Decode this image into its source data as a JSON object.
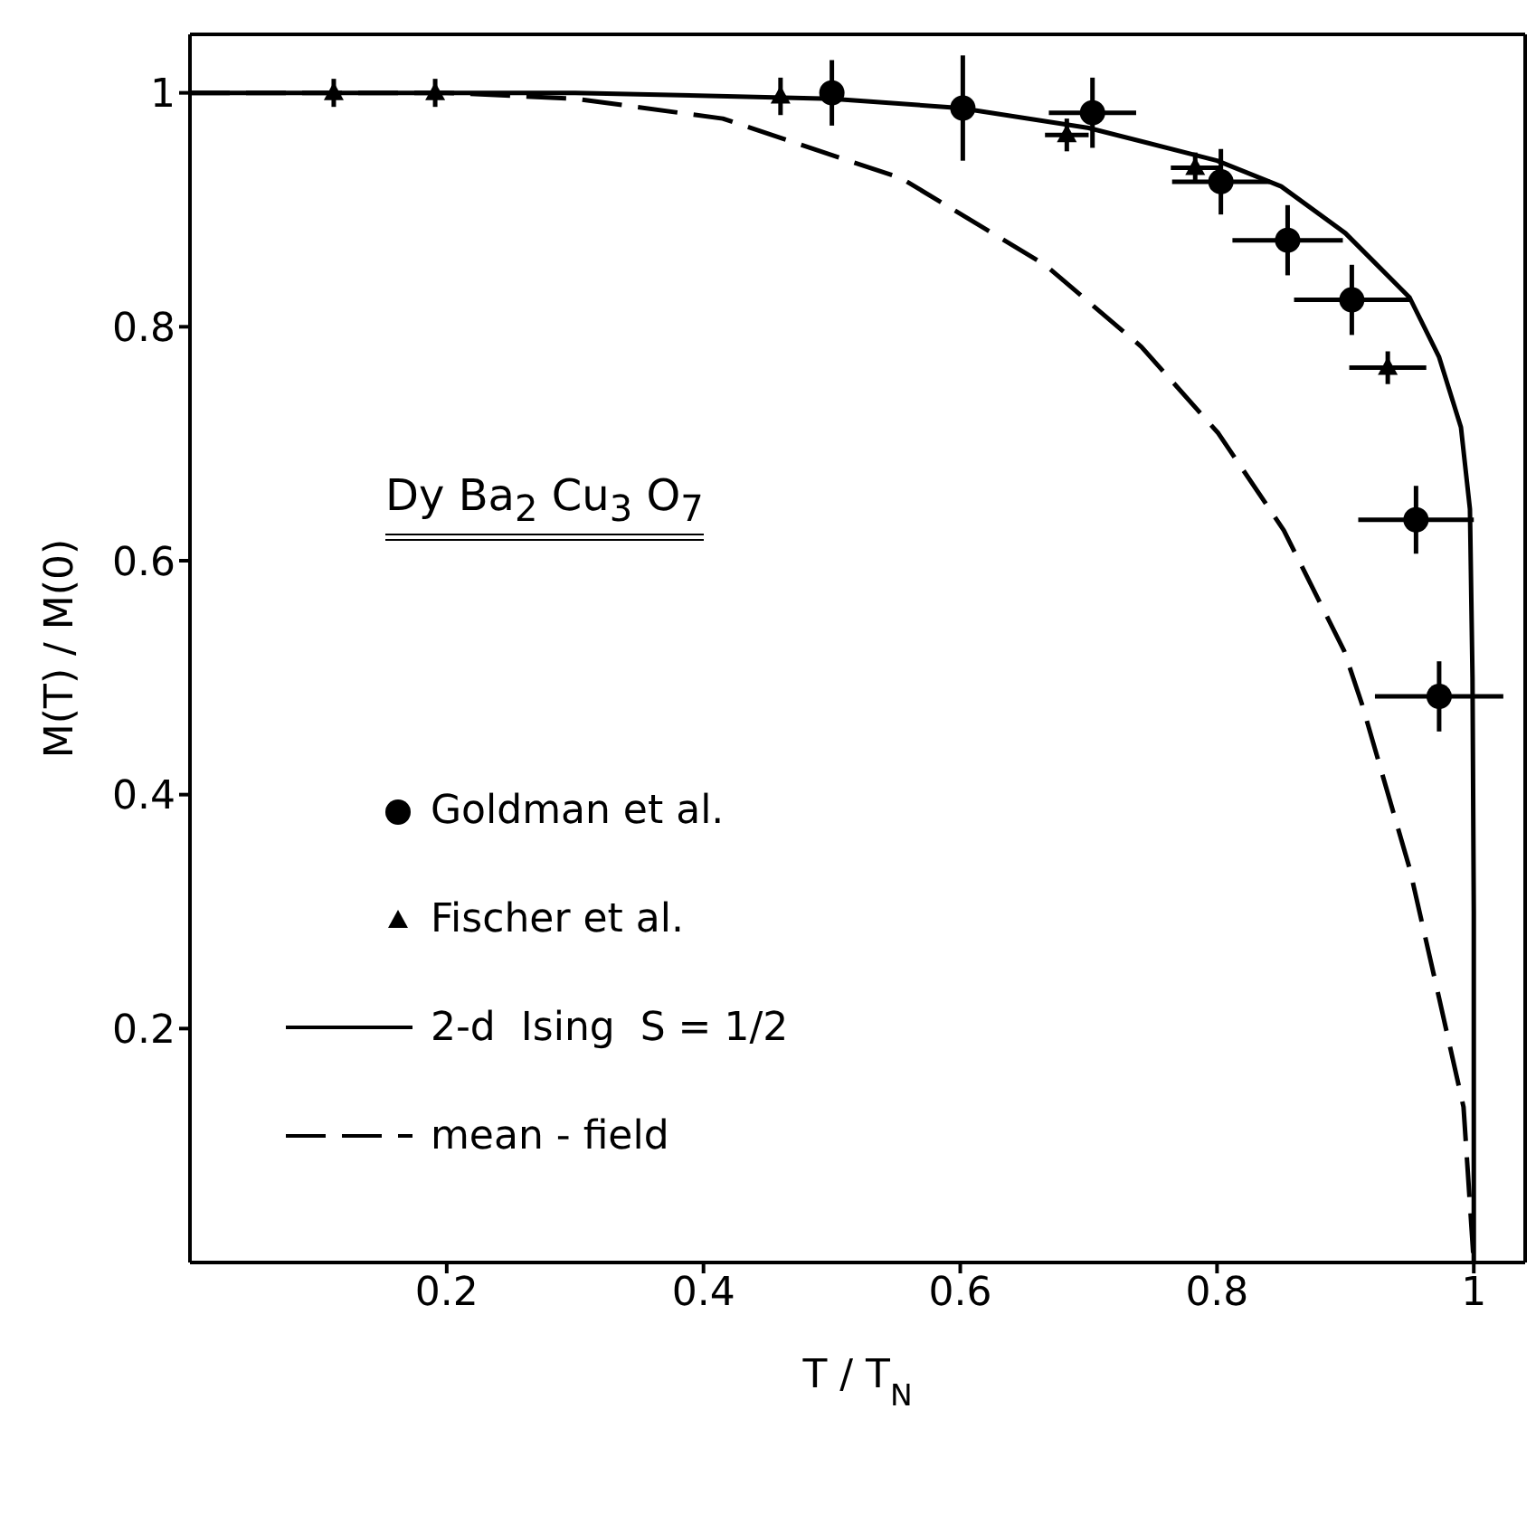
{
  "chart_data": {
    "type": "scatter",
    "xlabel": "T / T$_{N}$",
    "ylabel": "M(T) / M(0)",
    "xlim": [
      0,
      1.04
    ],
    "ylim": [
      0,
      1.05
    ],
    "xticks": [
      0.2,
      0.4,
      0.6,
      0.8,
      1
    ],
    "yticks": [
      0.2,
      0.4,
      0.6,
      0.8,
      1
    ],
    "legend": "left",
    "annotations": [
      "Dy Ba$_{2}$ Cu$_{3}$ O$_{7}$"
    ],
    "series": [
      {
        "name": "Goldman et al.",
        "marker": "circle",
        "color": "#000000",
        "x": [
          0.5,
          0.602,
          0.703,
          0.803,
          0.855,
          0.905,
          0.955,
          0.973
        ],
        "values": [
          1.0,
          0.987,
          0.983,
          0.924,
          0.874,
          0.823,
          0.635,
          0.484
        ],
        "errors": [
          0.028,
          0.045,
          0.03,
          0.028,
          0.03,
          0.03,
          0.029,
          0.03
        ],
        "xerrors": [
          null,
          null,
          0.034,
          0.038,
          0.043,
          0.045,
          0.045,
          0.05
        ]
      },
      {
        "name": "Fischer et al.",
        "marker": "triangle",
        "color": "#000000",
        "x": [
          0.112,
          0.191,
          0.46,
          0.683,
          0.783,
          0.933
        ],
        "values": [
          1.0,
          1.0,
          0.997,
          0.964,
          0.936,
          0.765
        ],
        "errors": [
          0.012,
          0.012,
          0.016,
          0.014,
          0.013,
          0.014
        ],
        "xerrors": [
          null,
          null,
          null,
          0.017,
          0.019,
          0.03
        ]
      },
      {
        "name": "2-d  Ising  S = 1/2",
        "type": "line",
        "marker": "none",
        "line_style": "solid",
        "color": "#000000",
        "x": [
          0,
          0.3,
          0.5,
          0.6,
          0.7,
          0.8,
          0.85,
          0.9,
          0.95,
          0.973,
          0.99,
          0.997,
          0.999,
          1.0,
          1.0
        ],
        "values": [
          1,
          1,
          0.995,
          0.987,
          0.97,
          0.942,
          0.92,
          0.88,
          0.825,
          0.774,
          0.714,
          0.644,
          0.5,
          0.3,
          0
        ]
      },
      {
        "name": "mean - field",
        "type": "line",
        "marker": "none",
        "line_style": "dashed",
        "color": "#000000",
        "x": [
          0,
          0.2,
          0.3,
          0.415,
          0.554,
          0.666,
          0.741,
          0.801,
          0.852,
          0.899,
          0.913,
          0.95,
          0.973,
          0.992,
          1.0
        ],
        "values": [
          1,
          1,
          0.995,
          0.978,
          0.927,
          0.853,
          0.783,
          0.709,
          0.626,
          0.523,
          0.477,
          0.337,
          0.226,
          0.133,
          0
        ]
      }
    ]
  }
}
